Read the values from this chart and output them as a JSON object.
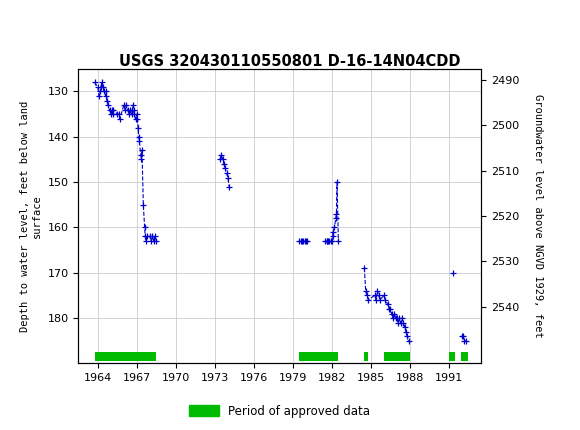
{
  "title": "USGS 320430110550801 D-16-14N04CDD",
  "ylabel_left": "Depth to water level, feet below land\nsurface",
  "ylabel_right": "Groundwater level above NGVD 1929, feet",
  "ylim_left": [
    125,
    190
  ],
  "ylim_right": [
    2487.5,
    2552.5
  ],
  "xlim": [
    1962.5,
    1993.5
  ],
  "xticks": [
    1964,
    1967,
    1970,
    1973,
    1976,
    1979,
    1982,
    1985,
    1988,
    1991
  ],
  "yticks_left": [
    130,
    140,
    150,
    160,
    170,
    180
  ],
  "yticks_right": [
    2490,
    2500,
    2510,
    2520,
    2530,
    2540
  ],
  "grid_color": "#cccccc",
  "line_color": "#0000cc",
  "header_color": "#006633",
  "legend_label": "Period of approved data",
  "legend_color": "#00bb00",
  "bg_color": "#ffffff",
  "data_x": [
    1963.75,
    1964.0,
    1964.1,
    1964.2,
    1964.25,
    1964.3,
    1964.4,
    1964.5,
    1964.6,
    1964.65,
    1964.7,
    1964.8,
    1964.9,
    1965.0,
    1965.1,
    1965.15,
    1965.2,
    1965.5,
    1965.6,
    1965.7,
    1966.0,
    1966.1,
    1966.2,
    1966.3,
    1966.4,
    1966.5,
    1966.6,
    1966.65,
    1966.7,
    1966.75,
    1966.8,
    1966.9,
    1967.0,
    1967.05,
    1967.1,
    1967.15,
    1967.2,
    1967.3,
    1967.35,
    1967.4,
    1967.5,
    1967.6,
    1967.65,
    1967.7,
    1967.75,
    1968.0,
    1968.1,
    1968.2,
    1968.3,
    1968.4,
    1968.5,
    1973.4,
    1973.5,
    1973.6,
    1973.7,
    1973.8,
    1973.9,
    1974.0,
    1974.1,
    1979.5,
    1979.6,
    1979.7,
    1979.8,
    1979.9,
    1980.0,
    1980.1,
    1981.5,
    1981.6,
    1981.65,
    1981.7,
    1981.8,
    1981.9,
    1982.0,
    1982.05,
    1982.1,
    1982.2,
    1982.3,
    1982.35,
    1982.4,
    1982.5,
    1984.5,
    1984.6,
    1984.7,
    1984.8,
    1985.3,
    1985.4,
    1985.5,
    1985.6,
    1985.7,
    1986.0,
    1986.1,
    1986.3,
    1986.4,
    1986.5,
    1986.6,
    1986.7,
    1986.8,
    1986.9,
    1987.0,
    1987.1,
    1987.2,
    1987.3,
    1987.4,
    1987.5,
    1987.6,
    1987.7,
    1987.8,
    1987.9,
    1991.3,
    1992.0,
    1992.1,
    1992.2,
    1992.3
  ],
  "data_y": [
    128,
    129,
    131,
    130,
    129,
    128,
    129,
    130,
    131,
    130,
    132,
    133,
    134,
    135,
    134,
    135,
    134,
    135,
    135,
    136,
    133,
    134,
    133,
    134,
    135,
    134,
    135,
    134,
    133,
    134,
    135,
    136,
    135,
    136,
    138,
    140,
    141,
    144,
    145,
    143,
    155,
    160,
    162,
    163,
    162,
    162,
    163,
    162,
    163,
    162,
    163,
    145,
    144,
    145,
    146,
    147,
    148,
    149,
    151,
    163,
    163,
    163,
    163,
    163,
    163,
    163,
    163,
    163,
    163,
    163,
    163,
    163,
    163,
    162,
    161,
    160,
    158,
    157,
    150,
    163,
    169,
    174,
    175,
    176,
    175,
    176,
    174,
    175,
    176,
    175,
    176,
    177,
    178,
    178,
    179,
    180,
    179,
    180,
    180,
    181,
    180,
    181,
    180,
    181,
    182,
    183,
    184,
    185,
    170,
    184,
    184,
    185,
    185
  ],
  "approved_periods": [
    [
      1963.75,
      1968.5
    ],
    [
      1979.5,
      1982.5
    ],
    [
      1984.5,
      1984.8
    ],
    [
      1986.0,
      1988.0
    ],
    [
      1991.0,
      1991.5
    ],
    [
      1991.9,
      1992.5
    ]
  ]
}
